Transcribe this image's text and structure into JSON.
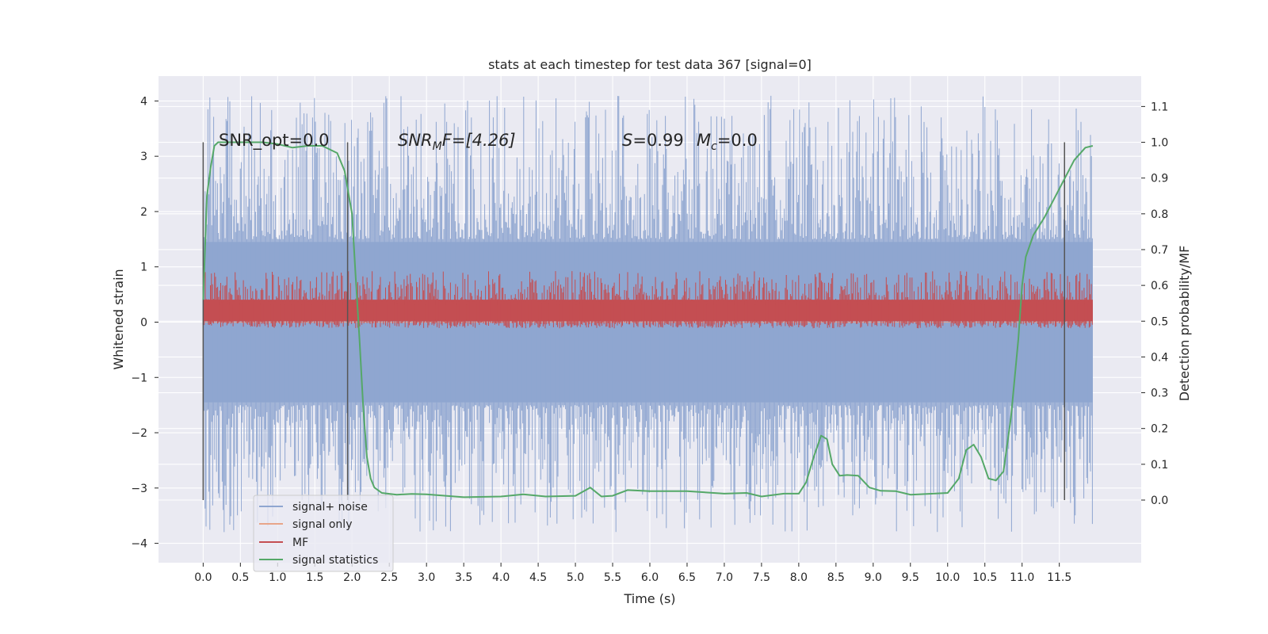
{
  "chart_data": {
    "type": "line",
    "title": "stats at each timestep for test data 367 [signal=0]",
    "xlabel": "Time (s)",
    "ylabel": "Whitened strain",
    "y2label": "Detection probability/MF",
    "xlim": [
      -0.6,
      12.6
    ],
    "ylim": [
      -4.35,
      4.45
    ],
    "y2lim": [
      -0.175,
      1.185
    ],
    "x_ticks": [
      "0.0",
      "0.5",
      "1.0",
      "1.5",
      "2.0",
      "2.5",
      "3.0",
      "3.5",
      "4.0",
      "4.5",
      "5.0",
      "5.5",
      "6.0",
      "6.5",
      "7.0",
      "7.5",
      "8.0",
      "8.5",
      "9.0",
      "9.5",
      "10.0",
      "10.5",
      "11.0",
      "11.5"
    ],
    "y_ticks": [
      "4",
      "3",
      "2",
      "1",
      "0",
      "−1",
      "−2",
      "−3",
      "−4"
    ],
    "y2_ticks": [
      "1.1",
      "1.0",
      "0.9",
      "0.8",
      "0.7",
      "0.6",
      "0.5",
      "0.4",
      "0.3",
      "0.2",
      "0.1",
      "0.0"
    ],
    "grid": true,
    "legend_position": "lower-left",
    "annotations": {
      "snr_opt": "SNR_opt=0.0",
      "snr_mf_var": "SNR",
      "snr_mf_sub": "M",
      "snr_mf_rest": "F=[4.26]",
      "s_var": "S",
      "s_rest": "=0.99",
      "mc_var": "M",
      "mc_sub": "c",
      "mc_rest": "=0.0"
    },
    "vertical_markers_x": [
      0.0,
      1.94,
      11.57
    ],
    "series": [
      {
        "name": "signal+ noise",
        "axis": "left",
        "color": "#8fa6d0",
        "t_start": 0.0,
        "t_end": 11.95,
        "noise_band": [
          -1.45,
          1.45
        ],
        "spike_max": 4.1,
        "spike_min": -3.8
      },
      {
        "name": "signal only",
        "axis": "left",
        "color": "#e8a589",
        "values_note": "flat at 0"
      },
      {
        "name": "MF",
        "axis": "right",
        "color": "#c44e52",
        "band": [
          0.48,
          0.63
        ],
        "peak": 0.64
      },
      {
        "name": "signal statistics",
        "axis": "right",
        "color": "#55a868",
        "x": [
          0.0,
          0.05,
          0.1,
          0.15,
          0.2,
          0.4,
          0.6,
          0.8,
          1.0,
          1.2,
          1.4,
          1.6,
          1.8,
          1.9,
          2.0,
          2.05,
          2.1,
          2.15,
          2.2,
          2.25,
          2.3,
          2.4,
          2.6,
          2.8,
          3.0,
          3.5,
          4.0,
          4.3,
          4.6,
          5.0,
          5.2,
          5.35,
          5.5,
          5.7,
          6.0,
          6.5,
          7.0,
          7.3,
          7.5,
          7.8,
          8.0,
          8.1,
          8.2,
          8.3,
          8.38,
          8.45,
          8.55,
          8.65,
          8.8,
          8.95,
          9.1,
          9.3,
          9.5,
          10.0,
          10.15,
          10.25,
          10.35,
          10.45,
          10.55,
          10.65,
          10.75,
          10.85,
          10.95,
          11.0,
          11.05,
          11.15,
          11.3,
          11.5,
          11.7,
          11.85,
          11.95
        ],
        "y": [
          0.56,
          0.85,
          0.93,
          0.99,
          1.0,
          1.0,
          1.0,
          1.0,
          0.995,
          0.985,
          0.99,
          0.99,
          0.97,
          0.92,
          0.8,
          0.62,
          0.45,
          0.26,
          0.12,
          0.06,
          0.035,
          0.02,
          0.015,
          0.017,
          0.016,
          0.008,
          0.01,
          0.016,
          0.01,
          0.012,
          0.035,
          0.01,
          0.012,
          0.028,
          0.025,
          0.025,
          0.018,
          0.02,
          0.01,
          0.018,
          0.018,
          0.05,
          0.12,
          0.18,
          0.17,
          0.1,
          0.068,
          0.07,
          0.068,
          0.035,
          0.026,
          0.025,
          0.015,
          0.02,
          0.06,
          0.14,
          0.155,
          0.12,
          0.06,
          0.055,
          0.08,
          0.23,
          0.45,
          0.6,
          0.68,
          0.74,
          0.79,
          0.87,
          0.95,
          0.985,
          0.99
        ]
      }
    ]
  }
}
